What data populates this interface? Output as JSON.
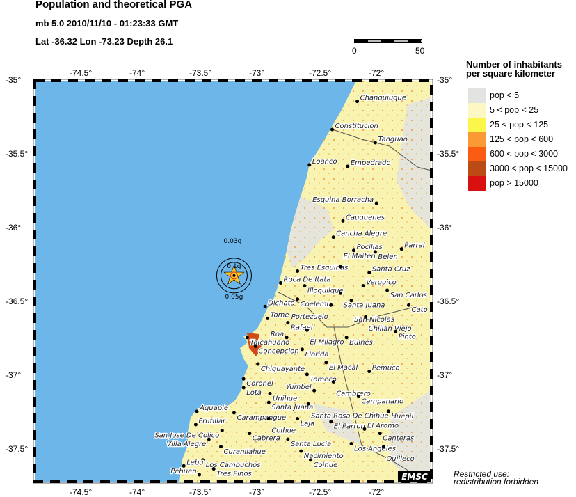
{
  "header": {
    "title": "Population and theoretical PGA",
    "event": "mb 5.0  2010/11/10 - 01:23:33 GMT",
    "location": "Lat -36.32    Lon -73.23     Depth  26.1"
  },
  "scale_bar": {
    "min_label": "0",
    "max_label": "50"
  },
  "map": {
    "lon_range": [
      -74.9,
      -71.6
    ],
    "lat_range": [
      -37.71,
      -35.0
    ],
    "lon_ticks": [
      "-74.5°",
      "-74°",
      "-73.5°",
      "-73°",
      "-72.5°",
      "-72°"
    ],
    "lon_tick_values": [
      -74.5,
      -74,
      -73.5,
      -73,
      -72.5,
      -72
    ],
    "lat_ticks": [
      "-35°",
      "-35.5°",
      "-36°",
      "-36.5°",
      "-37°",
      "-37.5°"
    ],
    "lat_tick_values": [
      -35,
      -35.5,
      -36,
      -36.5,
      -37,
      -37.5
    ],
    "colors": {
      "ocean": "#6cb6ea",
      "land_low": "#e4e4e0",
      "land_mid": "#fbf7a8"
    },
    "epicenter": {
      "lon": -73.23,
      "lat": -36.32,
      "icon": "star-icon",
      "color": "#f7c623"
    },
    "pga_labels": [
      "0.1g",
      "0.03g",
      "0.05g"
    ],
    "towns": [
      {
        "name": "Chanquiuque",
        "lon": -72.2,
        "lat": -35.14
      },
      {
        "name": "Constitucion",
        "lon": -72.41,
        "lat": -35.33
      },
      {
        "name": "Tanguao",
        "lon": -72.05,
        "lat": -35.42
      },
      {
        "name": "Loanco",
        "lon": -72.6,
        "lat": -35.57
      },
      {
        "name": "Empedrado",
        "lon": -72.28,
        "lat": -35.58
      },
      {
        "name": "Esquina Borracha",
        "lon": -72.04,
        "lat": -35.83
      },
      {
        "name": "Cauquenes",
        "lon": -72.32,
        "lat": -35.95
      },
      {
        "name": "Cancha Alegre",
        "lon": -72.4,
        "lat": -36.06
      },
      {
        "name": "Pocillas",
        "lon": -72.23,
        "lat": -36.15
      },
      {
        "name": "Belen",
        "lon": -72.05,
        "lat": -36.16
      },
      {
        "name": "Parral",
        "lon": -71.83,
        "lat": -36.14
      },
      {
        "name": "Tres Esquinas",
        "lon": -72.7,
        "lat": -36.29
      },
      {
        "name": "El Maiten",
        "lon": -72.34,
        "lat": -36.26
      },
      {
        "name": "Santa Cruz",
        "lon": -72.1,
        "lat": -36.3
      },
      {
        "name": "Roca De Itata",
        "lon": -72.84,
        "lat": -36.37
      },
      {
        "name": "Illoquilque",
        "lon": -72.64,
        "lat": -36.39
      },
      {
        "name": "Verquico",
        "lon": -72.15,
        "lat": -36.39
      },
      {
        "name": "San Carlos",
        "lon": -71.95,
        "lat": -36.42
      },
      {
        "name": "Santa Juana",
        "lon": -72.34,
        "lat": -36.44
      },
      {
        "name": "San Nicolas",
        "lon": -72.25,
        "lat": -36.49
      },
      {
        "name": "Coelemu",
        "lon": -72.7,
        "lat": -36.48
      },
      {
        "name": "Portezuelo",
        "lon": -72.42,
        "lat": -36.52
      },
      {
        "name": "Dichato",
        "lon": -72.97,
        "lat": -36.53
      },
      {
        "name": "Cato",
        "lon": -71.77,
        "lat": -36.52
      },
      {
        "name": "Chillan Viejo",
        "lon": -72.13,
        "lat": -36.6
      },
      {
        "name": "Tome",
        "lon": -72.95,
        "lat": -36.61
      },
      {
        "name": "Rafael",
        "lon": -72.78,
        "lat": -36.64
      },
      {
        "name": "El Milagro",
        "lon": -72.62,
        "lat": -36.69
      },
      {
        "name": "Pinto",
        "lon": -71.88,
        "lat": -36.7
      },
      {
        "name": "Talcahuano",
        "lon": -73.12,
        "lat": -36.74
      },
      {
        "name": "Roa",
        "lon": -72.79,
        "lat": -36.74
      },
      {
        "name": "Bulnes",
        "lon": -72.29,
        "lat": -36.74
      },
      {
        "name": "Concepcion",
        "lon": -73.05,
        "lat": -36.8
      },
      {
        "name": "Florida",
        "lon": -72.66,
        "lat": -36.82
      },
      {
        "name": "El Macal",
        "lon": -72.46,
        "lat": -36.91
      },
      {
        "name": "Chiguayante",
        "lon": -73.03,
        "lat": -36.92
      },
      {
        "name": "Tomeco",
        "lon": -72.62,
        "lat": -36.99
      },
      {
        "name": "Pemuco",
        "lon": -72.1,
        "lat": -36.97
      },
      {
        "name": "Coronel",
        "lon": -73.15,
        "lat": -37.02
      },
      {
        "name": "Cambrero",
        "lon": -72.4,
        "lat": -37.04
      },
      {
        "name": "Lota",
        "lon": -73.15,
        "lat": -37.08
      },
      {
        "name": "Yumbel",
        "lon": -72.56,
        "lat": -37.1
      },
      {
        "name": "Unihue",
        "lon": -72.93,
        "lat": -37.12
      },
      {
        "name": "Campanario",
        "lon": -72.19,
        "lat": -37.14
      },
      {
        "name": "Santa Juana",
        "lon": -72.94,
        "lat": -37.18
      },
      {
        "name": "Santa Rosa De Chihue",
        "lon": -72.61,
        "lat": -37.19
      },
      {
        "name": "Huepil",
        "lon": -71.94,
        "lat": -37.24
      },
      {
        "name": "Aguapie",
        "lon": -73.54,
        "lat": -37.24
      },
      {
        "name": "Carampangue",
        "lon": -73.23,
        "lat": -37.25
      },
      {
        "name": "Coihue",
        "lon": -72.94,
        "lat": -37.29
      },
      {
        "name": "Laja",
        "lon": -72.7,
        "lat": -37.29
      },
      {
        "name": "El Parron",
        "lon": -72.42,
        "lat": -37.31
      },
      {
        "name": "Frutillar",
        "lon": -73.55,
        "lat": -37.33
      },
      {
        "name": "San Jose De Colico",
        "lon": -73.33,
        "lat": -37.37
      },
      {
        "name": "El Aromo",
        "lon": -72.14,
        "lat": -37.36
      },
      {
        "name": "Cabrera",
        "lon": -73.1,
        "lat": -37.39
      },
      {
        "name": "Canteras",
        "lon": -72.01,
        "lat": -37.39
      },
      {
        "name": "Villa Alegre",
        "lon": -73.44,
        "lat": -37.43
      },
      {
        "name": "Santa Lucia",
        "lon": -72.78,
        "lat": -37.43
      },
      {
        "name": "Los Angeles",
        "lon": -72.25,
        "lat": -37.46
      },
      {
        "name": "Quilleco",
        "lon": -71.98,
        "lat": -37.48
      },
      {
        "name": "Curanilahue",
        "lon": -73.34,
        "lat": -37.48
      },
      {
        "name": "Nacimiento",
        "lon": -72.67,
        "lat": -37.51
      },
      {
        "name": "Los Cambuchos",
        "lon": -73.49,
        "lat": -37.57
      },
      {
        "name": "Coihue",
        "lon": -72.59,
        "lat": -37.57
      },
      {
        "name": "Lebu",
        "lon": -73.65,
        "lat": -37.61
      },
      {
        "name": "Tres Pinos",
        "lon": -73.4,
        "lat": -37.63
      },
      {
        "name": "Pehuen",
        "lon": -73.52,
        "lat": -37.67
      }
    ],
    "watermark": "EMSC"
  },
  "legend": {
    "title_line1": "Number of inhabitants",
    "title_line2": "per square kilometer",
    "items": [
      {
        "label": "pop < 5",
        "color": "#e3e3e1"
      },
      {
        "label": "5 < pop < 25",
        "color": "#fbf8c4"
      },
      {
        "label": "25 < pop < 125",
        "color": "#fbf64a"
      },
      {
        "label": "125 < pop < 600",
        "color": "#fa9a34"
      },
      {
        "label": "600 < pop < 3000",
        "color": "#fa5c12"
      },
      {
        "label": "3000 < pop < 15000",
        "color": "#bb4a14"
      },
      {
        "label": "pop > 15000",
        "color": "#d91010"
      }
    ]
  },
  "footer": {
    "line1": "Restricted use:",
    "line2": "redistribution forbidden"
  }
}
